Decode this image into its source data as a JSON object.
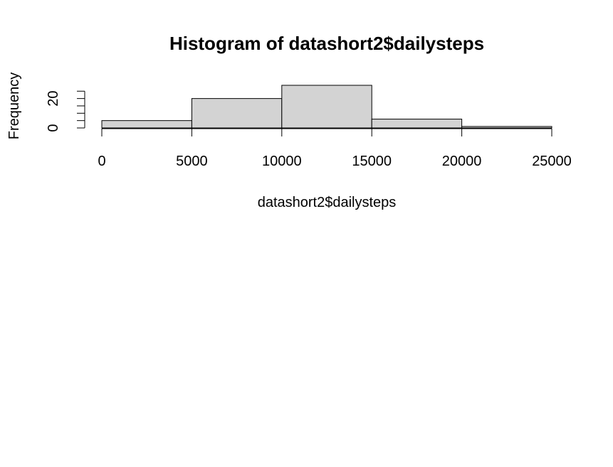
{
  "chart_data": {
    "type": "bar",
    "title": "Histogram of datashort2$dailysteps",
    "xlabel": "datashort2$dailysteps",
    "ylabel": "Frequency",
    "bins": [
      {
        "from": 0,
        "to": 5000,
        "count": 5
      },
      {
        "from": 5000,
        "to": 10000,
        "count": 20
      },
      {
        "from": 10000,
        "to": 15000,
        "count": 29
      },
      {
        "from": 15000,
        "to": 20000,
        "count": 6
      },
      {
        "from": 20000,
        "to": 25000,
        "count": 1
      }
    ],
    "xlim": [
      0,
      25000
    ],
    "ylim": [
      0,
      29
    ],
    "x_ticks": [
      0,
      5000,
      10000,
      15000,
      20000,
      25000
    ],
    "y_ticks": [
      0,
      5,
      10,
      15,
      20,
      25
    ],
    "y_tick_labels": [
      "0",
      "",
      "",
      "",
      "20",
      ""
    ],
    "grid": false,
    "bar_color": "#d3d3d3",
    "edge_color": "#000000"
  }
}
